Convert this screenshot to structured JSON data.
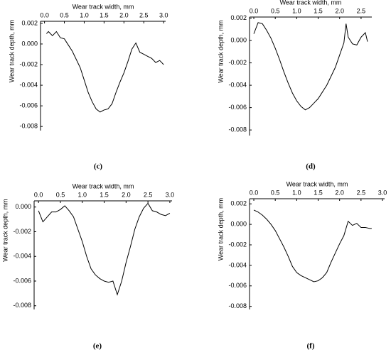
{
  "chart_data": [
    {
      "type": "line",
      "caption": "(c)",
      "x_label": "Wear track width, mm",
      "y_label": "Wear track depth, mm",
      "color": "#000000",
      "x": [
        0.05,
        0.1,
        0.2,
        0.3,
        0.4,
        0.5,
        0.6,
        0.7,
        0.8,
        0.9,
        1.0,
        1.1,
        1.2,
        1.3,
        1.4,
        1.5,
        1.6,
        1.7,
        1.8,
        1.9,
        2.0,
        2.1,
        2.2,
        2.3,
        2.4,
        2.5,
        2.6,
        2.7,
        2.8,
        2.9,
        3.0
      ],
      "values": [
        0.001,
        0.0012,
        0.0008,
        0.0012,
        0.0006,
        0.0005,
        -0.0001,
        -0.0007,
        -0.0015,
        -0.0023,
        -0.0035,
        -0.0047,
        -0.0056,
        -0.0063,
        -0.0066,
        -0.0064,
        -0.0063,
        -0.0058,
        -0.0047,
        -0.0037,
        -0.0028,
        -0.0017,
        -0.0005,
        0.0001,
        -0.0008,
        -0.001,
        -0.0012,
        -0.0014,
        -0.0018,
        -0.0016,
        -0.002
      ],
      "xlim": [
        -0.1,
        3.05
      ],
      "ylim": [
        -0.0084,
        0.0022
      ],
      "xticks": [
        {
          "value": 0,
          "label": "0.0"
        },
        0.5,
        {
          "value": 1,
          "label": "1.0"
        },
        1.5,
        {
          "value": 2,
          "label": "2.0"
        },
        2.5,
        {
          "value": 3,
          "label": "3.0"
        }
      ],
      "yticks": [
        0.002,
        {
          "value": 0,
          "label": "0.000"
        },
        -0.002,
        -0.004,
        -0.006,
        -0.008
      ]
    },
    {
      "type": "line",
      "caption": "(d)",
      "x_label": "Wear track width, mm",
      "y_label": "Wear track depth, mm",
      "color": "#000000",
      "x": [
        0.0,
        0.1,
        0.2,
        0.3,
        0.4,
        0.5,
        0.6,
        0.7,
        0.8,
        0.9,
        1.0,
        1.1,
        1.2,
        1.3,
        1.4,
        1.5,
        1.6,
        1.7,
        1.8,
        1.9,
        2.0,
        2.1,
        2.15,
        2.2,
        2.3,
        2.4,
        2.5,
        2.6,
        2.65
      ],
      "values": [
        0.0006,
        0.0016,
        0.0015,
        0.0009,
        0.0002,
        -0.0007,
        -0.0017,
        -0.0028,
        -0.0038,
        -0.0047,
        -0.0054,
        -0.0059,
        -0.0062,
        -0.006,
        -0.0056,
        -0.0052,
        -0.0046,
        -0.004,
        -0.0032,
        -0.0024,
        -0.0013,
        -0.0002,
        0.0015,
        0.0003,
        -0.0003,
        -0.0004,
        0.0003,
        0.0007,
        -0.0001
      ],
      "xlim": [
        -0.1,
        2.75
      ],
      "ylim": [
        -0.0085,
        0.0021
      ],
      "xticks": [
        {
          "value": 0,
          "label": "0.0"
        },
        0.5,
        {
          "value": 1,
          "label": "1.0"
        },
        1.5,
        {
          "value": 2,
          "label": "2.0"
        },
        2.5
      ],
      "yticks": [
        0.002,
        {
          "value": 0,
          "label": "0.000"
        },
        -0.002,
        -0.004,
        -0.006,
        -0.008
      ]
    },
    {
      "type": "line",
      "caption": "(e)",
      "x_label": "Wear track width, mm",
      "y_label": "Wear track depth, mm",
      "color": "#000000",
      "x": [
        0.0,
        0.1,
        0.2,
        0.3,
        0.4,
        0.5,
        0.6,
        0.7,
        0.8,
        0.9,
        1.0,
        1.1,
        1.2,
        1.3,
        1.4,
        1.5,
        1.6,
        1.7,
        1.8,
        1.9,
        2.0,
        2.1,
        2.2,
        2.3,
        2.4,
        2.5,
        2.6,
        2.7,
        2.8,
        2.9,
        3.0
      ],
      "values": [
        -0.0003,
        -0.0012,
        -0.0008,
        -0.0004,
        -0.0004,
        -0.0002,
        0.0001,
        -0.0003,
        -0.0008,
        -0.0018,
        -0.0028,
        -0.004,
        -0.005,
        -0.0055,
        -0.0058,
        -0.006,
        -0.0061,
        -0.006,
        -0.0071,
        -0.006,
        -0.0045,
        -0.0032,
        -0.0018,
        -0.0008,
        -0.0001,
        0.0003,
        -0.0003,
        -0.0004,
        -0.0006,
        -0.0007,
        -0.0005
      ],
      "xlim": [
        -0.1,
        3.05
      ],
      "ylim": [
        -0.0083,
        0.0005
      ],
      "xticks": [
        {
          "value": 0,
          "label": "0.0"
        },
        0.5,
        {
          "value": 1,
          "label": "1.0"
        },
        1.5,
        {
          "value": 2,
          "label": "2.0"
        },
        2.5,
        {
          "value": 3,
          "label": "3.0"
        }
      ],
      "yticks": [
        {
          "value": 0,
          "label": "0.000"
        },
        -0.002,
        -0.004,
        -0.006,
        -0.008
      ]
    },
    {
      "type": "line",
      "caption": "(f)",
      "x_label": "Wear track width, mm",
      "y_label": "Wear track depth, mm",
      "color": "#000000",
      "x": [
        0.0,
        0.1,
        0.2,
        0.3,
        0.4,
        0.5,
        0.6,
        0.7,
        0.8,
        0.9,
        1.0,
        1.1,
        1.2,
        1.3,
        1.4,
        1.5,
        1.6,
        1.7,
        1.8,
        1.9,
        2.0,
        2.1,
        2.2,
        2.3,
        2.4,
        2.5,
        2.6,
        2.7,
        2.75
      ],
      "values": [
        0.0014,
        0.0012,
        0.0009,
        0.0005,
        0.0,
        -0.0006,
        -0.0014,
        -0.0022,
        -0.0031,
        -0.0041,
        -0.0047,
        -0.005,
        -0.0052,
        -0.0054,
        -0.0056,
        -0.0055,
        -0.0052,
        -0.0047,
        -0.0037,
        -0.0028,
        -0.0019,
        -0.0011,
        0.0003,
        -0.0001,
        0.0001,
        -0.0003,
        -0.0003,
        -0.0004,
        -0.0004
      ],
      "xlim": [
        -0.1,
        3.05
      ],
      "ylim": [
        -0.0083,
        0.0025
      ],
      "xticks": [
        {
          "value": 0,
          "label": "0.0"
        },
        0.5,
        {
          "value": 1,
          "label": "1.0"
        },
        1.5,
        {
          "value": 2,
          "label": "2.0"
        },
        2.5,
        {
          "value": 3,
          "label": "3.0"
        }
      ],
      "yticks": [
        0.002,
        {
          "value": 0,
          "label": "0.000"
        },
        -0.002,
        -0.004,
        -0.006,
        -0.008
      ]
    }
  ]
}
